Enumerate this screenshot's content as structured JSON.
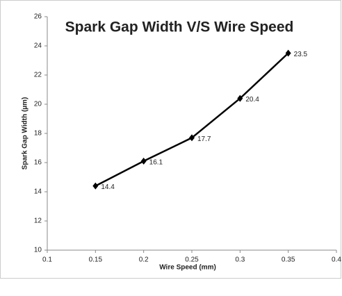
{
  "chart_data": {
    "type": "line",
    "title": "Spark Gap Width V/S Wire Speed",
    "xlabel": "Wire Speed (mm)",
    "ylabel": "Spark Gap Width (µm)",
    "x": [
      0.15,
      0.2,
      0.25,
      0.3,
      0.35
    ],
    "series": [
      {
        "name": "Spark Gap Width",
        "color": "#000000",
        "values": [
          14.4,
          16.1,
          17.7,
          20.4,
          23.5
        ]
      }
    ],
    "xlim": [
      0.1,
      0.4
    ],
    "xticks": [
      0.1,
      0.15,
      0.2,
      0.25,
      0.3,
      0.35,
      0.4
    ],
    "ylim": [
      10,
      26
    ],
    "yticks": [
      10,
      12,
      14,
      16,
      18,
      20,
      22,
      24,
      26
    ],
    "grid": false
  }
}
